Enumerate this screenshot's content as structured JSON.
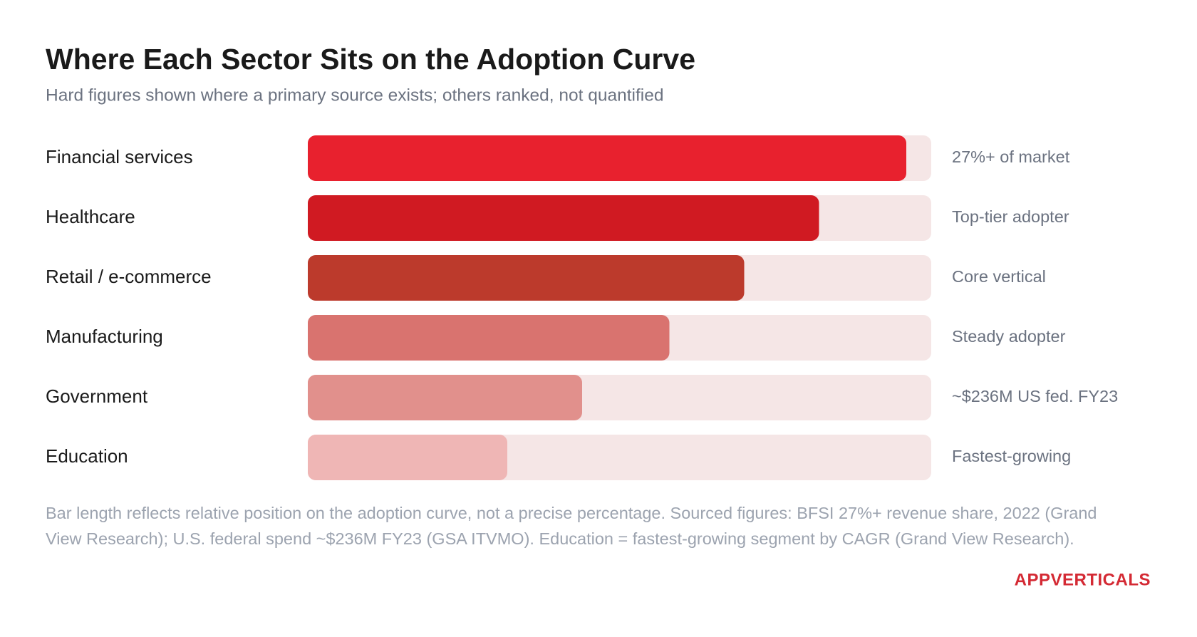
{
  "chart_data": {
    "type": "bar",
    "orientation": "horizontal",
    "title": "Where Each Sector Sits on the Adoption Curve",
    "subtitle": "Hard figures shown where a primary source exists; others ranked, not quantified",
    "categories": [
      "Financial services",
      "Healthcare",
      "Retail / e-commerce",
      "Manufacturing",
      "Government",
      "Education"
    ],
    "values": [
      96,
      82,
      70,
      58,
      44,
      32
    ],
    "colors": [
      "#e8212e",
      "#d01a22",
      "#bc3a2c",
      "#d9736f",
      "#e1908c",
      "#efb6b5"
    ],
    "track_color": "#f5e6e6",
    "xlim": [
      0,
      100
    ],
    "annotations": [
      "27%+ of market",
      "Top-tier adopter",
      "Core vertical",
      "Steady adopter",
      "~$236M US fed. FY23",
      "Fastest-growing"
    ],
    "footnote": "Bar length reflects relative position on the adoption curve, not a precise percentage. Sourced figures: BFSI 27%+ revenue share, 2022 (Grand View Research); U.S. federal spend ~$236M FY23 (GSA ITVMO). Education = fastest-growing segment by CAGR (Grand View Research).",
    "brand": "APPVERTICALS"
  }
}
